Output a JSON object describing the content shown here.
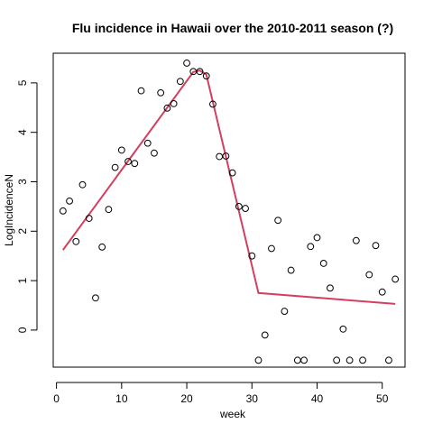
{
  "chart_data": {
    "type": "scatter",
    "title": "Flu incidence in Hawaii over the 2010-2011 season (?)",
    "xlabel": "week",
    "ylabel": "LogIncidenceN",
    "xlim": [
      -0.5,
      53.5
    ],
    "ylim": [
      -0.75,
      5.6
    ],
    "x_ticks": [
      0,
      10,
      20,
      30,
      40,
      50
    ],
    "y_ticks": [
      0,
      1,
      2,
      3,
      4,
      5
    ],
    "grid": false,
    "colors": {
      "points": "#000000",
      "fit": "#d33f5f"
    },
    "series": [
      {
        "type": "scatter",
        "marker": "open-circle",
        "points": [
          [
            1,
            2.41
          ],
          [
            2,
            2.61
          ],
          [
            3,
            1.79
          ],
          [
            4,
            2.94
          ],
          [
            5,
            2.26
          ],
          [
            6,
            0.65
          ],
          [
            7,
            1.68
          ],
          [
            8,
            2.44
          ],
          [
            9,
            3.29
          ],
          [
            10,
            3.64
          ],
          [
            11,
            3.41
          ],
          [
            12,
            3.37
          ],
          [
            13,
            4.84
          ],
          [
            14,
            3.78
          ],
          [
            15,
            3.58
          ],
          [
            16,
            4.8
          ],
          [
            17,
            4.49
          ],
          [
            18,
            4.58
          ],
          [
            19,
            5.03
          ],
          [
            20,
            5.4
          ],
          [
            21,
            5.23
          ],
          [
            22,
            5.23
          ],
          [
            23,
            5.14
          ],
          [
            24,
            4.57
          ],
          [
            25,
            3.51
          ],
          [
            26,
            3.52
          ],
          [
            27,
            3.18
          ],
          [
            28,
            2.5
          ],
          [
            29,
            2.46
          ],
          [
            30,
            1.5
          ],
          [
            31,
            -0.61
          ],
          [
            32,
            -0.1
          ],
          [
            33,
            1.65
          ],
          [
            34,
            2.22
          ],
          [
            35,
            0.38
          ],
          [
            36,
            1.21
          ],
          [
            37,
            -0.61
          ],
          [
            38,
            -0.61
          ],
          [
            39,
            1.69
          ],
          [
            40,
            1.87
          ],
          [
            41,
            1.35
          ],
          [
            42,
            0.85
          ],
          [
            43,
            -0.61
          ],
          [
            44,
            0.02
          ],
          [
            45,
            -0.61
          ],
          [
            46,
            1.81
          ],
          [
            47,
            -0.61
          ],
          [
            48,
            1.12
          ],
          [
            49,
            1.71
          ],
          [
            50,
            0.77
          ],
          [
            51,
            -0.61
          ],
          [
            52,
            1.03
          ]
        ]
      },
      {
        "type": "line",
        "points": [
          [
            1,
            1.62
          ],
          [
            21,
            5.22
          ],
          [
            22,
            5.25
          ],
          [
            23,
            5.17
          ],
          [
            31,
            0.75
          ],
          [
            52,
            0.53
          ]
        ]
      }
    ]
  }
}
